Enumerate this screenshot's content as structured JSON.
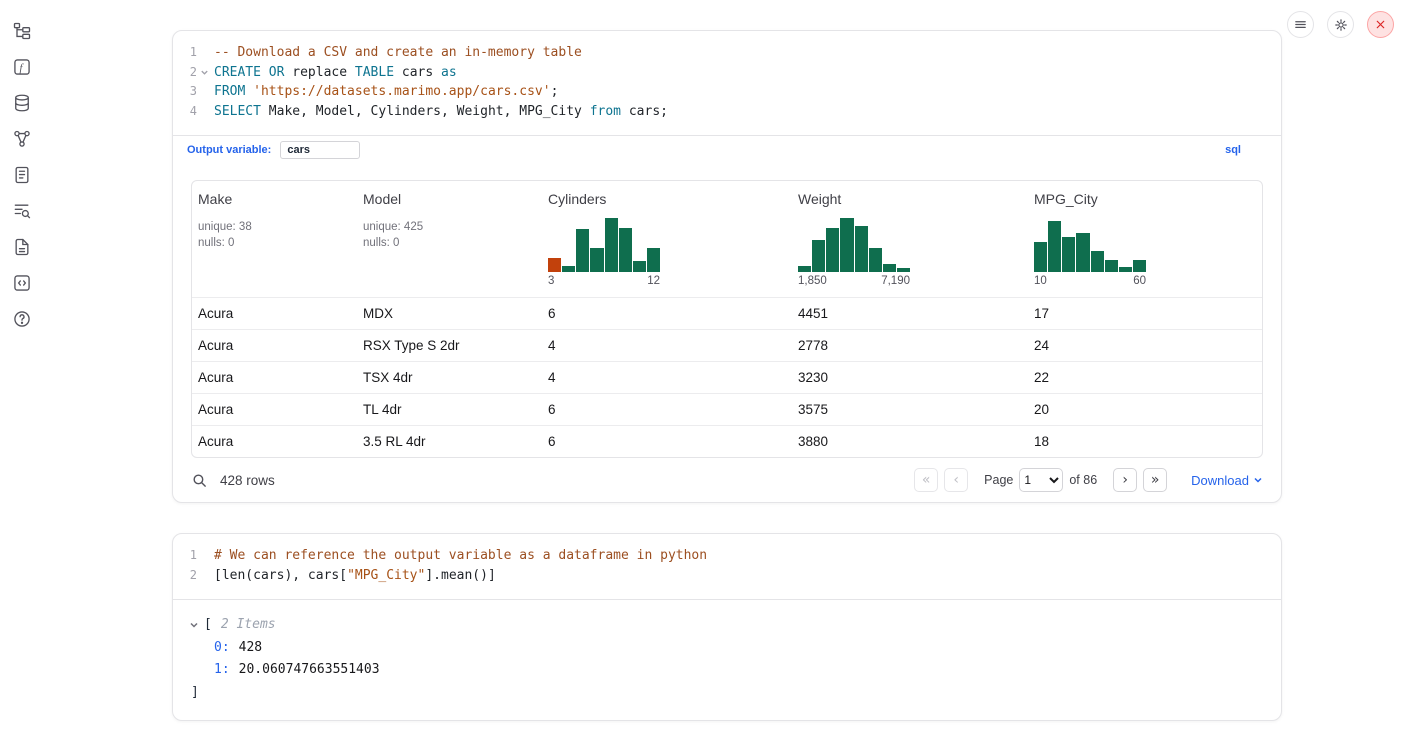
{
  "sidebar": {
    "items": [
      {
        "name": "file-explorer"
      },
      {
        "name": "variables"
      },
      {
        "name": "data-sources"
      },
      {
        "name": "dependency-graph"
      },
      {
        "name": "scratchpad"
      },
      {
        "name": "logs"
      },
      {
        "name": "documentation"
      },
      {
        "name": "snippets"
      },
      {
        "name": "help"
      }
    ]
  },
  "topbar": {
    "buttons": [
      {
        "name": "notebook-menu",
        "icon": "hamburger-icon"
      },
      {
        "name": "settings",
        "icon": "gear-icon"
      },
      {
        "name": "shutdown",
        "icon": "close-icon"
      }
    ]
  },
  "sql_cell": {
    "lines": [
      {
        "n": "1",
        "tokens": [
          {
            "c": "comment",
            "t": "-- Download a CSV and create an in-memory table"
          }
        ]
      },
      {
        "n": "2",
        "fold": true,
        "tokens": [
          {
            "c": "keyword",
            "t": "CREATE"
          },
          {
            "c": "plain",
            "t": " "
          },
          {
            "c": "keyword",
            "t": "OR"
          },
          {
            "c": "plain",
            "t": " replace "
          },
          {
            "c": "keyword",
            "t": "TABLE"
          },
          {
            "c": "plain",
            "t": " cars "
          },
          {
            "c": "keyword",
            "t": "as"
          }
        ]
      },
      {
        "n": "3",
        "tokens": [
          {
            "c": "keyword",
            "t": "FROM"
          },
          {
            "c": "plain",
            "t": " "
          },
          {
            "c": "string",
            "t": "'https://datasets.marimo.app/cars.csv'"
          },
          {
            "c": "plain",
            "t": ";"
          }
        ]
      },
      {
        "n": "4",
        "tokens": [
          {
            "c": "keyword",
            "t": "SELECT"
          },
          {
            "c": "plain",
            "t": " Make, Model, Cylinders, Weight, MPG_City "
          },
          {
            "c": "keyword",
            "t": "from"
          },
          {
            "c": "plain",
            "t": " cars;"
          }
        ]
      }
    ],
    "output_variable_label": "Output variable:",
    "output_variable_value": "cars",
    "language_badge": "sql"
  },
  "table": {
    "columns": [
      {
        "label": "Make",
        "stats": [
          "unique: 38",
          "nulls: 0"
        ]
      },
      {
        "label": "Model",
        "stats": [
          "unique: 425",
          "nulls: 0"
        ]
      },
      {
        "label": "Cylinders",
        "hist": {
          "min": "3",
          "max": "12",
          "highlight_first": true,
          "bars": [
            0.25,
            0.12,
            0.8,
            0.45,
            1.0,
            0.82,
            0.2,
            0.45
          ]
        }
      },
      {
        "label": "Weight",
        "hist": {
          "min": "1,850",
          "max": "7,190",
          "bars": [
            0.12,
            0.6,
            0.82,
            1.0,
            0.85,
            0.45,
            0.15,
            0.08
          ]
        }
      },
      {
        "label": "MPG_City",
        "hist": {
          "min": "10",
          "max": "60",
          "bars": [
            0.55,
            0.95,
            0.65,
            0.72,
            0.38,
            0.22,
            0.1,
            0.22
          ]
        }
      }
    ],
    "rows": [
      [
        "Acura",
        "MDX",
        "6",
        "4451",
        "17"
      ],
      [
        "Acura",
        "RSX Type S 2dr",
        "4",
        "2778",
        "24"
      ],
      [
        "Acura",
        "TSX 4dr",
        "4",
        "3230",
        "22"
      ],
      [
        "Acura",
        "TL 4dr",
        "6",
        "3575",
        "20"
      ],
      [
        "Acura",
        "3.5 RL 4dr",
        "6",
        "3880",
        "18"
      ]
    ],
    "footer": {
      "row_count": "428 rows",
      "page_label": "Page",
      "page_value": "1",
      "of_label": "of 86",
      "download_label": "Download",
      "first_icon": "«",
      "prev_icon": "‹",
      "next_icon": "›",
      "last_icon": "»"
    }
  },
  "py_cell": {
    "lines": [
      {
        "n": "1",
        "tokens": [
          {
            "c": "comment",
            "t": "# We can reference the output variable as a dataframe in python"
          }
        ]
      },
      {
        "n": "2",
        "tokens": [
          {
            "c": "plain",
            "t": "[len(cars), cars["
          },
          {
            "c": "string",
            "t": "\"MPG_City\""
          },
          {
            "c": "plain",
            "t": "].mean()]"
          }
        ]
      }
    ],
    "output": {
      "open_bracket": "[",
      "items_count": "2 Items",
      "entries": [
        {
          "key": "0:",
          "value": "428"
        },
        {
          "key": "1:",
          "value": "20.060747663551403"
        }
      ],
      "close_bracket": "]"
    }
  },
  "colors": {
    "accent_blue": "#2563eb",
    "keyword_teal": "#0e7490",
    "comment_brown": "#9c4f21",
    "string_orange": "#a75217",
    "histogram_green": "#0f6e4e",
    "histogram_orange": "#c2410c",
    "close_red": "#dc2626",
    "border_gray": "#e4e4e7"
  }
}
